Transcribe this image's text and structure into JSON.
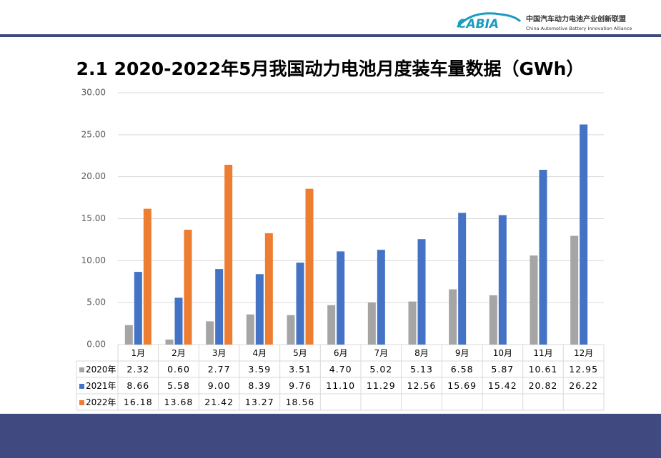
{
  "header": {
    "logo": "CABIA",
    "org_cn": "中国汽车动力电池产业创新联盟",
    "org_en": "China Automotive Battery Innovation Alliance"
  },
  "chart_data": {
    "type": "bar",
    "title": "2.1 2020-2022年5月我国动力电池月度装车量数据（GWh）",
    "categories": [
      "1月",
      "2月",
      "3月",
      "4月",
      "5月",
      "6月",
      "7月",
      "8月",
      "9月",
      "10月",
      "11月",
      "12月"
    ],
    "series": [
      {
        "name": "2020年",
        "color": "#a5a5a5",
        "values": [
          2.32,
          0.6,
          2.77,
          3.59,
          3.51,
          4.7,
          5.02,
          5.13,
          6.58,
          5.87,
          10.61,
          12.95
        ],
        "value_labels": [
          "2.32",
          "0.60",
          "2.77",
          "3.59",
          "3.51",
          "4.70",
          "5.02",
          "5.13",
          "6.58",
          "5.87",
          "10.61",
          "12.95"
        ]
      },
      {
        "name": "2021年",
        "color": "#4472c4",
        "values": [
          8.66,
          5.58,
          9.0,
          8.39,
          9.76,
          11.1,
          11.29,
          12.56,
          15.69,
          15.42,
          20.82,
          26.22
        ],
        "value_labels": [
          "8.66",
          "5.58",
          "9.00",
          "8.39",
          "9.76",
          "11.10",
          "11.29",
          "12.56",
          "15.69",
          "15.42",
          "20.82",
          "26.22"
        ]
      },
      {
        "name": "2022年",
        "color": "#ed7d31",
        "values": [
          16.18,
          13.68,
          21.42,
          13.27,
          18.56,
          null,
          null,
          null,
          null,
          null,
          null,
          null
        ],
        "value_labels": [
          "16.18",
          "13.68",
          "21.42",
          "13.27",
          "18.56",
          null,
          null,
          null,
          null,
          null,
          null,
          null
        ]
      }
    ],
    "ylim": [
      0,
      30
    ],
    "yticks": [
      {
        "value": 0,
        "label": "0.00"
      },
      {
        "value": 5,
        "label": "5.00"
      },
      {
        "value": 10,
        "label": "10.00"
      },
      {
        "value": 15,
        "label": "15.00"
      },
      {
        "value": 20,
        "label": "20.00"
      },
      {
        "value": 25,
        "label": "25.00"
      },
      {
        "value": 30,
        "label": "30.00"
      }
    ],
    "grid": true
  }
}
